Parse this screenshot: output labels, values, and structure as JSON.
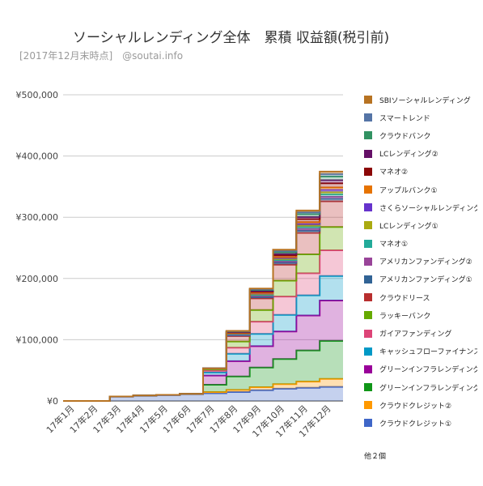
{
  "header": {
    "title": "ソーシャルレンディング全体　累積 収益額(税引前)",
    "subtitle": "[2017年12月末時点]　@soutai.info"
  },
  "legend_more": "他２個",
  "chart_data": {
    "type": "area",
    "stacked": true,
    "step": true,
    "categories": [
      "17年1月",
      "17年2月",
      "17年3月",
      "17年4月",
      "17年5月",
      "17年6月",
      "17年7月",
      "17年8月",
      "17年9月",
      "17年10月",
      "17年11月",
      "17年12月"
    ],
    "y_tick_labels": [
      "¥0",
      "¥100,000",
      "¥200,000",
      "¥300,000",
      "¥400,000",
      "¥500,000"
    ],
    "ylim": [
      0,
      500000
    ],
    "grid": true,
    "legend_position": "right",
    "series": [
      {
        "name": "クラウドクレジット①",
        "color": "#3f66c8",
        "values": [
          0,
          0,
          7000,
          8500,
          9500,
          11000,
          12500,
          14500,
          17500,
          20000,
          21500,
          23000
        ]
      },
      {
        "name": "クラウドクレジット②",
        "color": "#ff9900",
        "values": [
          0,
          0,
          300,
          400,
          500,
          600,
          2000,
          3500,
          5000,
          7500,
          10000,
          13000
        ]
      },
      {
        "name": "グリーンインフラレンディング",
        "color": "#109618",
        "values": [
          0,
          0,
          0,
          0,
          0,
          0,
          12000,
          22000,
          32000,
          41000,
          51000,
          62000
        ]
      },
      {
        "name": "グリーンインフラレンディング",
        "color": "#990099",
        "values": [
          0,
          0,
          0,
          0,
          0,
          0,
          15000,
          25000,
          35000,
          45000,
          57000,
          66000
        ]
      },
      {
        "name": "キャッシュフローファイナンス",
        "color": "#0099c6",
        "values": [
          0,
          0,
          0,
          0,
          0,
          0,
          5000,
          12000,
          20000,
          27000,
          33000,
          40000
        ]
      },
      {
        "name": "ガイアファンディング",
        "color": "#dd4477",
        "values": [
          0,
          0,
          0,
          0,
          0,
          0,
          3000,
          10000,
          20000,
          30000,
          36000,
          42000
        ]
      },
      {
        "name": "ラッキーバンク",
        "color": "#66aa00",
        "values": [
          0,
          0,
          0,
          0,
          0,
          0,
          2500,
          10000,
          19000,
          26000,
          31000,
          38000
        ]
      },
      {
        "name": "クラウドリース",
        "color": "#b82e2e",
        "values": [
          0,
          0,
          0,
          0,
          0,
          0,
          1000,
          9000,
          19000,
          26000,
          35000,
          42000
        ]
      },
      {
        "name": "アメリカンファンディング①",
        "color": "#316395",
        "values": [
          0,
          0,
          0,
          0,
          0,
          0,
          0,
          1000,
          2000,
          3000,
          3500,
          4000
        ]
      },
      {
        "name": "アメリカンファンディング②",
        "color": "#994499",
        "values": [
          0,
          0,
          0,
          0,
          0,
          0,
          0,
          1000,
          2000,
          2500,
          3000,
          3500
        ]
      },
      {
        "name": "マネオ①",
        "color": "#22aa99",
        "values": [
          0,
          0,
          0,
          0,
          0,
          0,
          0,
          1000,
          1500,
          2000,
          3000,
          4000
        ]
      },
      {
        "name": "LCレンディング①",
        "color": "#aaaa11",
        "values": [
          0,
          0,
          0,
          0,
          0,
          0,
          0,
          1000,
          1500,
          2000,
          2500,
          3500
        ]
      },
      {
        "name": "さくらソーシャルレンディング",
        "color": "#6633cc",
        "values": [
          0,
          0,
          0,
          0,
          0,
          0,
          0,
          500,
          1000,
          1500,
          2500,
          3500
        ]
      },
      {
        "name": "アップルバンク①",
        "color": "#e67300",
        "values": [
          0,
          0,
          0,
          0,
          0,
          0,
          0,
          500,
          1000,
          1500,
          3000,
          4000
        ]
      },
      {
        "name": "マネオ②",
        "color": "#8b0707",
        "values": [
          0,
          0,
          0,
          0,
          0,
          0,
          0,
          1000,
          2000,
          3000,
          5000,
          7000
        ]
      },
      {
        "name": "LCレンディング②",
        "color": "#651067",
        "values": [
          0,
          0,
          0,
          0,
          0,
          0,
          0,
          500,
          1000,
          2000,
          3500,
          5000
        ]
      },
      {
        "name": "クラウドバンク",
        "color": "#329262",
        "values": [
          0,
          0,
          0,
          0,
          0,
          0,
          0,
          1000,
          2000,
          3000,
          4500,
          6000
        ]
      },
      {
        "name": "スマートレンド",
        "color": "#5574a6",
        "values": [
          0,
          0,
          0,
          0,
          0,
          0,
          0,
          500,
          1000,
          2000,
          3000,
          4000
        ]
      },
      {
        "name": "SBIソーシャルレンディング",
        "color": "#b77322",
        "values": [
          0,
          0,
          0,
          0,
          0,
          0,
          0,
          500,
          1000,
          2000,
          3000,
          4000
        ]
      }
    ]
  }
}
